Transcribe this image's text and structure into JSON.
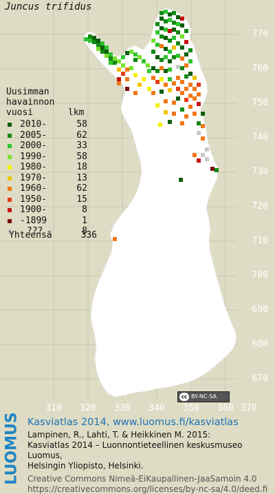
{
  "title": "Juncus trifidus",
  "legend": {
    "heading": [
      "Uusimman",
      "havainnon",
      "vuosi"
    ],
    "count_heading": "lkm",
    "entries": [
      {
        "label": "2010-",
        "count": "58",
        "color": "#0d5e0d"
      },
      {
        "label": "2005-",
        "count": "62",
        "color": "#138a13"
      },
      {
        "label": "2000-",
        "count": "33",
        "color": "#2fc42f"
      },
      {
        "label": "1990-",
        "count": "58",
        "color": "#78e02c"
      },
      {
        "label": "1980-",
        "count": "18",
        "color": "#f2f200"
      },
      {
        "label": "1970-",
        "count": "13",
        "color": "#f2c200"
      },
      {
        "label": "1960-",
        "count": "62",
        "color": "#f07818"
      },
      {
        "label": "1950-",
        "count": "15",
        "color": "#e63c14"
      },
      {
        "label": "1900-",
        "count": "8",
        "color": "#c81010"
      },
      {
        "label": "-1899",
        "count": "1",
        "color": "#7a0c0c"
      },
      {
        "label": "???",
        "count": "8",
        "color": "#c9c9c9"
      }
    ],
    "total_label": "Yhteensä",
    "total_count": "336"
  },
  "axes": {
    "y_labels": [
      "770",
      "760",
      "750",
      "740",
      "730",
      "720",
      "710",
      "700",
      "690",
      "680",
      "670"
    ],
    "x_labels": [
      "310",
      "320",
      "330",
      "340",
      "350",
      "360",
      "370"
    ]
  },
  "license_badge": "BY-NC-SA",
  "logo_text": "LUOMUS",
  "credits": {
    "line1": "Kasviatlas 2014, www.luomus.fi/kasviatlas",
    "line2": "Lampinen, R., Lahti, T. & Heikkinen M. 2015:",
    "line3": "Kasviatlas 2014 – Luonnontieteellinen keskusmuseo Luomus,",
    "line4": "Helsingin Yliopisto, Helsinki.",
    "line5": "Creative Commons Nimeä-EiKaupallinen-JaaSamoin 4.0",
    "line6": "https://creativecommons.org/licenses/by-nc-sa/4.0/deed.fi"
  },
  "colors": {
    "background": "#dedcc4",
    "land": "#ffffff",
    "grid": "#c8c6ae",
    "credit_blue": "#1a72b5"
  }
}
